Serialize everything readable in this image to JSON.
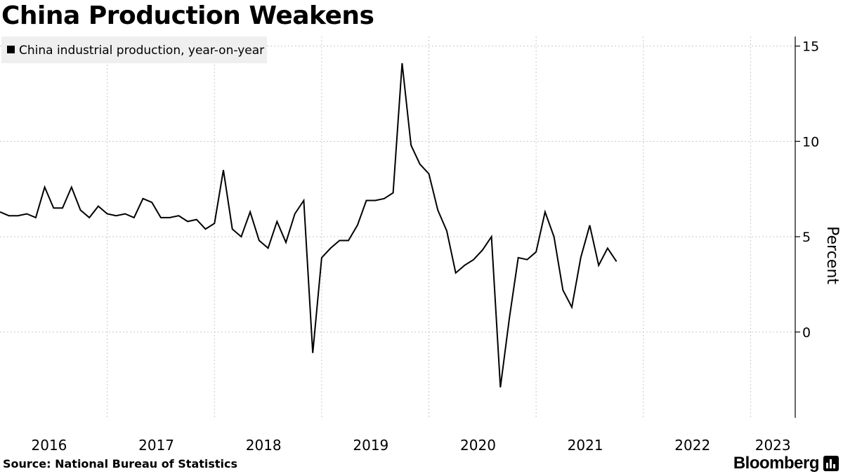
{
  "header": {
    "title": "China Production Weakens"
  },
  "footer": {
    "source": "Source:  National Bureau of Statistics",
    "brand": "Bloomberg"
  },
  "colors": {
    "line": "#000000",
    "grid": "#c8c8c8",
    "legend_bg": "#efefef"
  },
  "chart_data": {
    "type": "line",
    "title": "China Production Weakens",
    "ylabel": "Percent",
    "ylim": [
      -4.5,
      15.5
    ],
    "yticks": [
      0,
      5,
      10,
      15
    ],
    "x_start": "2016-01",
    "x_end": "2023-06",
    "xticks": [
      "2016",
      "2017",
      "2018",
      "2019",
      "2020",
      "2021",
      "2022",
      "2023"
    ],
    "grid": true,
    "legend_position": "top-left",
    "series": [
      {
        "name": "China industrial production, year-on-year",
        "points": [
          [
            "2016-01",
            6.3
          ],
          [
            "2016-02",
            6.1
          ],
          [
            "2016-03",
            6.1
          ],
          [
            "2016-04",
            6.2
          ],
          [
            "2016-05",
            6.0
          ],
          [
            "2016-06",
            7.6
          ],
          [
            "2016-07",
            6.5
          ],
          [
            "2016-08",
            6.5
          ],
          [
            "2016-09",
            7.6
          ],
          [
            "2016-10",
            6.4
          ],
          [
            "2016-11",
            6.0
          ],
          [
            "2016-12",
            6.6
          ],
          [
            "2017-01",
            6.2
          ],
          [
            "2017-02",
            6.1
          ],
          [
            "2017-03",
            6.2
          ],
          [
            "2017-04",
            6.0
          ],
          [
            "2017-05",
            7.0
          ],
          [
            "2017-06",
            6.8
          ],
          [
            "2017-07",
            6.0
          ],
          [
            "2017-08",
            6.0
          ],
          [
            "2017-09",
            6.1
          ],
          [
            "2017-10",
            5.8
          ],
          [
            "2017-11",
            5.9
          ],
          [
            "2017-12",
            5.4
          ],
          [
            "2018-01",
            5.7
          ],
          [
            "2018-02",
            8.5
          ],
          [
            "2018-03",
            5.4
          ],
          [
            "2018-04",
            5.0
          ],
          [
            "2018-05",
            6.3
          ],
          [
            "2018-06",
            4.8
          ],
          [
            "2018-07",
            4.4
          ],
          [
            "2018-08",
            5.8
          ],
          [
            "2018-09",
            4.7
          ],
          [
            "2018-10",
            6.2
          ],
          [
            "2018-11",
            6.9
          ],
          [
            "2018-12",
            -1.1
          ],
          [
            "2019-01",
            3.9
          ],
          [
            "2019-02",
            4.4
          ],
          [
            "2019-03",
            4.8
          ],
          [
            "2019-04",
            4.8
          ],
          [
            "2019-05",
            5.6
          ],
          [
            "2019-06",
            6.9
          ],
          [
            "2019-07",
            6.9
          ],
          [
            "2019-08",
            7.0
          ],
          [
            "2019-09",
            7.3
          ],
          [
            "2019-10",
            14.1
          ],
          [
            "2019-11",
            9.8
          ],
          [
            "2019-12",
            8.8
          ],
          [
            "2020-01",
            8.3
          ],
          [
            "2020-02",
            6.4
          ],
          [
            "2020-03",
            5.3
          ],
          [
            "2020-04",
            3.1
          ],
          [
            "2020-05",
            3.5
          ],
          [
            "2020-06",
            3.8
          ],
          [
            "2020-07",
            4.3
          ],
          [
            "2020-08",
            5.0
          ],
          [
            "2020-09",
            -2.9
          ],
          [
            "2020-10",
            0.7
          ],
          [
            "2020-11",
            3.9
          ],
          [
            "2020-12",
            3.8
          ],
          [
            "2021-01",
            4.2
          ],
          [
            "2021-02",
            6.3
          ],
          [
            "2021-03",
            5.0
          ],
          [
            "2021-04",
            2.2
          ],
          [
            "2021-05",
            1.3
          ],
          [
            "2021-06",
            3.9
          ],
          [
            "2021-07",
            5.6
          ],
          [
            "2021-08",
            3.5
          ],
          [
            "2021-09",
            4.4
          ],
          [
            "2021-10",
            3.7
          ]
        ]
      }
    ]
  }
}
